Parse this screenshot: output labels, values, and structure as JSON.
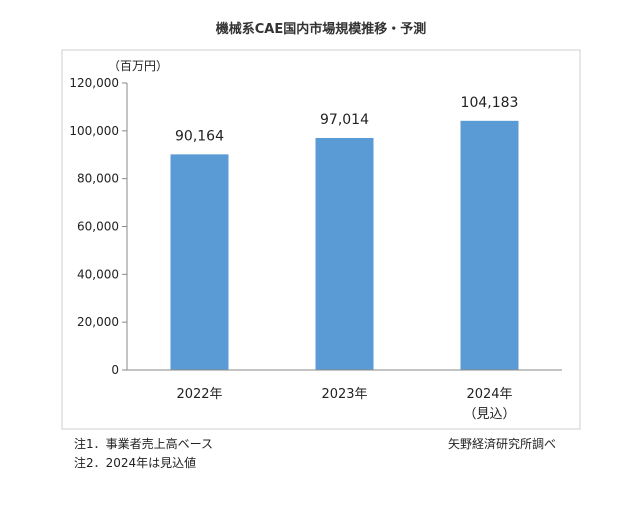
{
  "chart_data": {
    "type": "bar",
    "title": "機械系CAE国内市場規模推移・予測",
    "ylabel": "（百万円）",
    "xlabel": "",
    "categories": [
      "2022年",
      "2023年",
      "2024年"
    ],
    "category_sublabels": [
      "",
      "",
      "（見込）"
    ],
    "values": [
      90164,
      97014,
      104183
    ],
    "data_labels": [
      "90,164",
      "97,014",
      "104,183"
    ],
    "ylim": [
      0,
      120000
    ],
    "yticks": [
      0,
      20000,
      40000,
      60000,
      80000,
      100000,
      120000
    ],
    "ytick_labels": [
      "0",
      "20,000",
      "40,000",
      "60,000",
      "80,000",
      "100,000",
      "120,000"
    ],
    "bar_color": "#5B9BD5",
    "grid": false,
    "legend": "none"
  },
  "notes": {
    "note1": "注1．事業者売上高ベース",
    "note2": "注2．2024年は見込値",
    "source": "矢野経済研究所調べ"
  }
}
